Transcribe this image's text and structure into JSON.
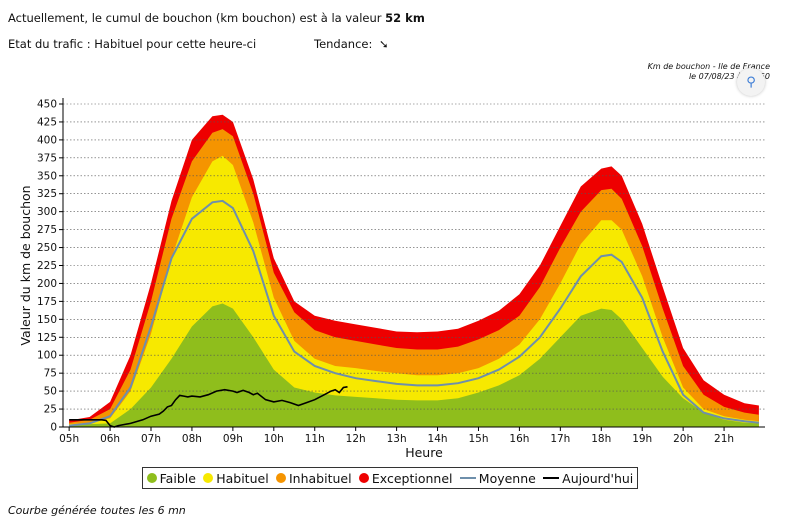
{
  "header": {
    "cumul_prefix": "Actuellement, le cumul de bouchon (km bouchon) est à la valeur",
    "cumul_value": "52 km",
    "etat_text": "Etat du trafic : Habituel pour cette heure-ci",
    "tendance_label": "Tendance:",
    "tendance_icon": "arrow-down-right-icon",
    "tendance_glyph": "➘"
  },
  "caption": {
    "line1": "Km de bouchon - Ile de France",
    "line2": "le 07/08/23 à 11h50"
  },
  "zoom_icon": "zoom-icon",
  "footer": "Courbe générée toutes les 6 mn",
  "colors": {
    "faible": "#8fbe1c",
    "habituel": "#f7e900",
    "inhabituel": "#f59400",
    "exceptionnel": "#ee0000",
    "moyenne": "#6e8fab",
    "aujourdhui": "#000000"
  },
  "chart_data": {
    "type": "area",
    "xlabel": "Heure",
    "ylabel": "Valeur du  km de bouchon",
    "ylim": [
      0,
      450
    ],
    "yticks": [
      0,
      25,
      50,
      75,
      100,
      125,
      150,
      175,
      200,
      225,
      250,
      275,
      300,
      325,
      350,
      375,
      400,
      425,
      450
    ],
    "xlim": [
      4.85,
      22.0
    ],
    "xticks": [
      {
        "label": "05h",
        "x": 5
      },
      {
        "label": "06h",
        "x": 6
      },
      {
        "label": "07h",
        "x": 7
      },
      {
        "label": "08h",
        "x": 8
      },
      {
        "label": "09h",
        "x": 9
      },
      {
        "label": "10h",
        "x": 10
      },
      {
        "label": "11h",
        "x": 11
      },
      {
        "label": "12h",
        "x": 12
      },
      {
        "label": "13h",
        "x": 13
      },
      {
        "label": "14h",
        "x": 14
      },
      {
        "label": "15h",
        "x": 15
      },
      {
        "label": "16h",
        "x": 16
      },
      {
        "label": "17h",
        "x": 17
      },
      {
        "label": "18h",
        "x": 18
      },
      {
        "label": "19h",
        "x": 19
      },
      {
        "label": "20h",
        "x": 20
      },
      {
        "label": "21h",
        "x": 21
      }
    ],
    "grid": true,
    "legend_position": "bottom",
    "x": [
      5.0,
      5.5,
      6.0,
      6.5,
      7.0,
      7.5,
      8.0,
      8.5,
      8.75,
      9.0,
      9.5,
      10.0,
      10.5,
      11.0,
      11.5,
      12.0,
      12.5,
      13.0,
      13.5,
      14.0,
      14.5,
      15.0,
      15.5,
      16.0,
      16.5,
      17.0,
      17.5,
      18.0,
      18.25,
      18.5,
      19.0,
      19.5,
      20.0,
      20.5,
      21.0,
      21.5,
      21.85
    ],
    "series": [
      {
        "name": "Faible",
        "values": [
          3,
          4,
          5,
          25,
          55,
          95,
          140,
          168,
          172,
          165,
          125,
          80,
          55,
          48,
          44,
          42,
          40,
          38,
          37,
          37,
          40,
          48,
          58,
          72,
          95,
          125,
          155,
          165,
          163,
          150,
          110,
          70,
          40,
          20,
          10,
          6,
          5
        ]
      },
      {
        "name": "Habituel",
        "values": [
          4,
          6,
          12,
          50,
          130,
          235,
          320,
          370,
          378,
          365,
          285,
          180,
          120,
          95,
          85,
          82,
          78,
          75,
          72,
          72,
          75,
          82,
          95,
          115,
          150,
          200,
          255,
          288,
          288,
          275,
          210,
          125,
          55,
          25,
          15,
          10,
          8
        ]
      },
      {
        "name": "Inhabituel",
        "values": [
          6,
          10,
          25,
          80,
          175,
          290,
          370,
          410,
          415,
          405,
          325,
          215,
          160,
          135,
          125,
          120,
          115,
          110,
          108,
          108,
          112,
          122,
          135,
          155,
          195,
          250,
          300,
          330,
          332,
          318,
          252,
          165,
          85,
          45,
          28,
          20,
          17
        ]
      },
      {
        "name": "Exceptionnel",
        "values": [
          9,
          14,
          35,
          100,
          200,
          315,
          400,
          433,
          435,
          425,
          345,
          235,
          175,
          155,
          148,
          143,
          138,
          133,
          132,
          133,
          137,
          148,
          162,
          185,
          225,
          280,
          335,
          360,
          363,
          350,
          283,
          195,
          110,
          65,
          45,
          33,
          30
        ]
      },
      {
        "name": "Moyenne",
        "values": [
          2,
          5,
          15,
          55,
          140,
          235,
          290,
          313,
          315,
          305,
          245,
          155,
          105,
          85,
          75,
          68,
          64,
          60,
          58,
          58,
          61,
          68,
          80,
          98,
          125,
          165,
          210,
          238,
          240,
          230,
          180,
          105,
          45,
          20,
          12,
          8,
          6
        ]
      },
      {
        "name": "Aujourd'hui",
        "x": [
          5.0,
          5.4,
          5.8,
          5.9,
          6.0,
          6.1,
          6.2,
          6.5,
          6.8,
          7.0,
          7.2,
          7.3,
          7.4,
          7.5,
          7.6,
          7.7,
          7.8,
          7.9,
          8.0,
          8.2,
          8.4,
          8.6,
          8.8,
          9.0,
          9.1,
          9.25,
          9.4,
          9.5,
          9.6,
          9.8,
          10.0,
          10.2,
          10.4,
          10.6,
          10.8,
          11.0,
          11.2,
          11.4,
          11.5,
          11.6,
          11.7,
          11.8
        ],
        "values": [
          10,
          10,
          10,
          9,
          2,
          0,
          2,
          5,
          10,
          15,
          18,
          22,
          28,
          30,
          38,
          44,
          43,
          42,
          43,
          42,
          45,
          50,
          52,
          50,
          48,
          51,
          48,
          45,
          47,
          38,
          35,
          37,
          34,
          30,
          34,
          38,
          44,
          50,
          52,
          48,
          55,
          56
        ]
      }
    ]
  }
}
